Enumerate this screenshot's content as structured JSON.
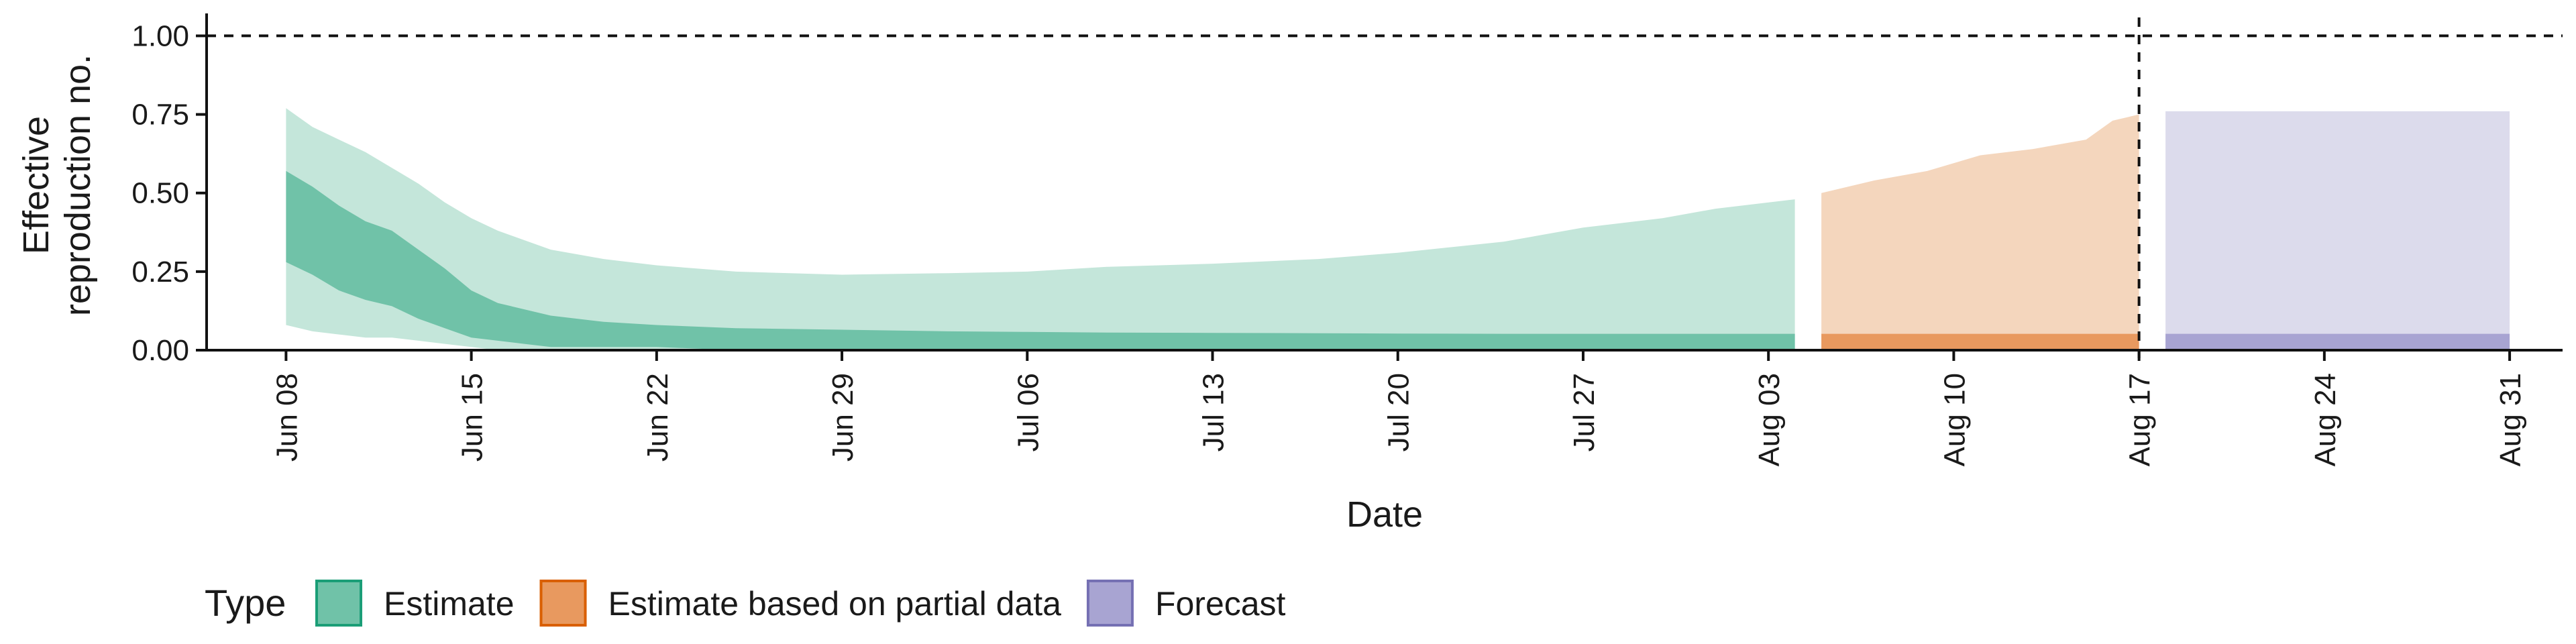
{
  "chart_data": {
    "type": "area",
    "title": "",
    "xlabel": "Date",
    "ylabel_lines": [
      "Effective",
      "reproduction no."
    ],
    "ylim": [
      0,
      1.05
    ],
    "yticks": [
      0,
      0.25,
      0.5,
      0.75,
      1.0
    ],
    "ytick_labels": [
      "0.00",
      "0.25",
      "0.50",
      "0.75",
      "1.00"
    ],
    "xlim": [
      "2020-06-05",
      "2020-09-02"
    ],
    "xticks": [
      "2020-06-08",
      "2020-06-15",
      "2020-06-22",
      "2020-06-29",
      "2020-07-06",
      "2020-07-13",
      "2020-07-20",
      "2020-07-27",
      "2020-08-03",
      "2020-08-10",
      "2020-08-17",
      "2020-08-24",
      "2020-08-31"
    ],
    "xtick_labels": [
      "Jun 08",
      "Jun 15",
      "Jun 22",
      "Jun 29",
      "Jul 06",
      "Jul 13",
      "Jul 20",
      "Jul 27",
      "Aug 03",
      "Aug 10",
      "Aug 17",
      "Aug 24",
      "Aug 31"
    ],
    "reference_lines": {
      "horizontal_y": 1.0,
      "vertical_date": "2020-08-17",
      "style": "dashed"
    },
    "grid": false,
    "legend": {
      "title": "Type",
      "position": "bottom-left",
      "entries": [
        {
          "label": "Estimate",
          "fill": "#70c2a8",
          "stroke": "#1b9e77"
        },
        {
          "label": "Estimate based on partial data",
          "fill": "#e8995f",
          "stroke": "#d95f02"
        },
        {
          "label": "Forecast",
          "fill": "#a8a4d2",
          "stroke": "#7570b3"
        }
      ]
    },
    "series": [
      {
        "name": "Estimate",
        "color_outer": "#c4e6da",
        "color_inner": "#70c2a8",
        "points": [
          {
            "date": "2020-06-08",
            "lo90": 0.08,
            "hi90": 0.77,
            "lo50": 0.28,
            "hi50": 0.57
          },
          {
            "date": "2020-06-09",
            "lo90": 0.06,
            "hi90": 0.71,
            "lo50": 0.24,
            "hi50": 0.52
          },
          {
            "date": "2020-06-10",
            "lo90": 0.05,
            "hi90": 0.67,
            "lo50": 0.19,
            "hi50": 0.46
          },
          {
            "date": "2020-06-11",
            "lo90": 0.04,
            "hi90": 0.63,
            "lo50": 0.16,
            "hi50": 0.41
          },
          {
            "date": "2020-06-12",
            "lo90": 0.04,
            "hi90": 0.58,
            "lo50": 0.14,
            "hi50": 0.38
          },
          {
            "date": "2020-06-13",
            "lo90": 0.03,
            "hi90": 0.53,
            "lo50": 0.1,
            "hi50": 0.32
          },
          {
            "date": "2020-06-14",
            "lo90": 0.02,
            "hi90": 0.47,
            "lo50": 0.07,
            "hi50": 0.26
          },
          {
            "date": "2020-06-15",
            "lo90": 0.01,
            "hi90": 0.42,
            "lo50": 0.04,
            "hi50": 0.19
          },
          {
            "date": "2020-06-16",
            "lo90": 0.0,
            "hi90": 0.38,
            "lo50": 0.03,
            "hi50": 0.15
          },
          {
            "date": "2020-06-17",
            "lo90": 0.0,
            "hi90": 0.35,
            "lo50": 0.02,
            "hi50": 0.13
          },
          {
            "date": "2020-06-18",
            "lo90": 0.0,
            "hi90": 0.32,
            "lo50": 0.01,
            "hi50": 0.11
          },
          {
            "date": "2020-06-20",
            "lo90": 0.0,
            "hi90": 0.29,
            "lo50": 0.01,
            "hi50": 0.09
          },
          {
            "date": "2020-06-22",
            "lo90": 0.0,
            "hi90": 0.27,
            "lo50": 0.01,
            "hi50": 0.08
          },
          {
            "date": "2020-06-25",
            "lo90": 0.0,
            "hi90": 0.25,
            "lo50": 0.0,
            "hi50": 0.07
          },
          {
            "date": "2020-06-29",
            "lo90": 0.0,
            "hi90": 0.24,
            "lo50": 0.0,
            "hi50": 0.065
          },
          {
            "date": "2020-07-03",
            "lo90": 0.0,
            "hi90": 0.245,
            "lo50": 0.0,
            "hi50": 0.06
          },
          {
            "date": "2020-07-06",
            "lo90": 0.0,
            "hi90": 0.25,
            "lo50": 0.0,
            "hi50": 0.058
          },
          {
            "date": "2020-07-09",
            "lo90": 0.0,
            "hi90": 0.265,
            "lo50": 0.0,
            "hi50": 0.056
          },
          {
            "date": "2020-07-13",
            "lo90": 0.0,
            "hi90": 0.275,
            "lo50": 0.0,
            "hi50": 0.055
          },
          {
            "date": "2020-07-17",
            "lo90": 0.0,
            "hi90": 0.29,
            "lo50": 0.0,
            "hi50": 0.054
          },
          {
            "date": "2020-07-20",
            "lo90": 0.0,
            "hi90": 0.31,
            "lo50": 0.0,
            "hi50": 0.053
          },
          {
            "date": "2020-07-24",
            "lo90": 0.0,
            "hi90": 0.345,
            "lo50": 0.0,
            "hi50": 0.052
          },
          {
            "date": "2020-07-27",
            "lo90": 0.0,
            "hi90": 0.39,
            "lo50": 0.0,
            "hi50": 0.052
          },
          {
            "date": "2020-07-30",
            "lo90": 0.0,
            "hi90": 0.42,
            "lo50": 0.0,
            "hi50": 0.052
          },
          {
            "date": "2020-08-01",
            "lo90": 0.0,
            "hi90": 0.45,
            "lo50": 0.0,
            "hi50": 0.052
          },
          {
            "date": "2020-08-04",
            "lo90": 0.0,
            "hi90": 0.48,
            "lo50": 0.0,
            "hi50": 0.052
          }
        ]
      },
      {
        "name": "Estimate based on partial data",
        "color_outer": "#f4d6bd",
        "color_inner": "#e8995f",
        "points": [
          {
            "date": "2020-08-05",
            "lo90": 0.0,
            "hi90": 0.5,
            "lo50": 0.0,
            "hi50": 0.052
          },
          {
            "date": "2020-08-07",
            "lo90": 0.0,
            "hi90": 0.54,
            "lo50": 0.0,
            "hi50": 0.052
          },
          {
            "date": "2020-08-09",
            "lo90": 0.0,
            "hi90": 0.57,
            "lo50": 0.0,
            "hi50": 0.052
          },
          {
            "date": "2020-08-11",
            "lo90": 0.0,
            "hi90": 0.62,
            "lo50": 0.0,
            "hi50": 0.052
          },
          {
            "date": "2020-08-13",
            "lo90": 0.0,
            "hi90": 0.64,
            "lo50": 0.0,
            "hi50": 0.052
          },
          {
            "date": "2020-08-15",
            "lo90": 0.0,
            "hi90": 0.67,
            "lo50": 0.0,
            "hi50": 0.052
          },
          {
            "date": "2020-08-16",
            "lo90": 0.0,
            "hi90": 0.73,
            "lo50": 0.0,
            "hi50": 0.052
          },
          {
            "date": "2020-08-17",
            "lo90": 0.0,
            "hi90": 0.75,
            "lo50": 0.0,
            "hi50": 0.052
          }
        ]
      },
      {
        "name": "Forecast",
        "color_outer": "#dcdbec",
        "color_inner": "#a8a4d2",
        "points": [
          {
            "date": "2020-08-18",
            "lo90": 0.0,
            "hi90": 0.76,
            "lo50": 0.0,
            "hi50": 0.052
          },
          {
            "date": "2020-08-31",
            "lo90": 0.0,
            "hi90": 0.76,
            "lo50": 0.0,
            "hi50": 0.052
          }
        ]
      }
    ]
  }
}
